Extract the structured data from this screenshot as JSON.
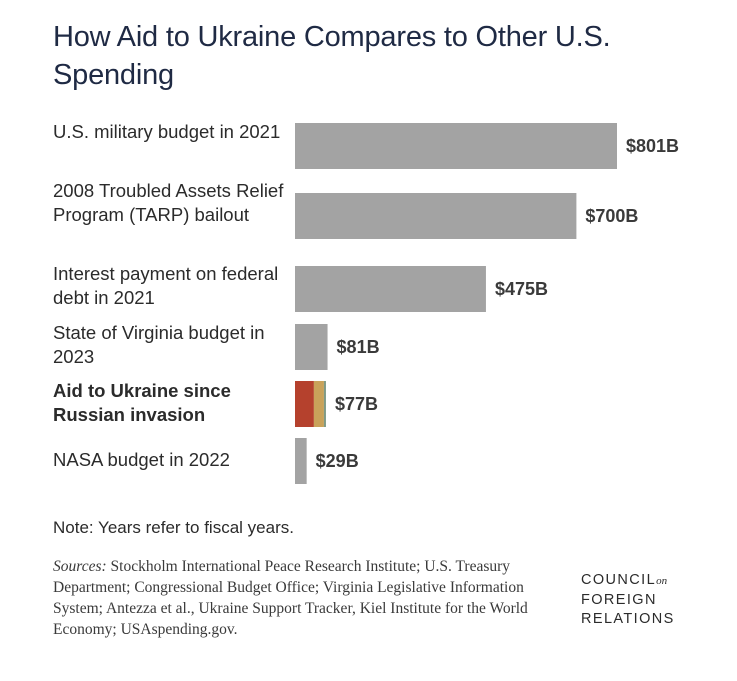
{
  "title": "How Aid to Ukraine Compares to Other U.S. Spending",
  "note": "Note: Years refer to fiscal years.",
  "sources_prefix": "Sources:",
  "sources_text": " Stockholm International Peace Research Institute; U.S. Treasury Department; Congressional Budget Office; Virginia Legislative Information System; Antezza et al., Ukraine Support Tracker, Kiel Institute for the World Economy; USAspending.gov.",
  "logo": {
    "line1": "COUNCIL",
    "on": "on",
    "line2": "FOREIGN",
    "line3": "RELATIONS"
  },
  "colors": {
    "bar": "#a3a3a3",
    "ukraine_1": "#b5412d",
    "ukraine_2": "#c9a25a",
    "ukraine_3": "#7f9a86"
  },
  "chart_data": {
    "type": "bar",
    "orientation": "horizontal",
    "categories": [
      "U.S. military budget in 2021",
      "2008 Troubled Assets Relief Program (TARP) bailout",
      "Interest payment on federal debt in 2021",
      "State of Virginia budget in 2023",
      "Aid to Ukraine since Russian invasion",
      "NASA budget in 2022"
    ],
    "values": [
      801,
      700,
      475,
      81,
      77,
      29
    ],
    "value_labels": [
      "$801B",
      "$700B",
      "$475B",
      "$81B",
      "$77B",
      "$29B"
    ],
    "highlight_index": 4,
    "ukraine_breakdown": [
      {
        "color": "#b5412d",
        "value": 47
      },
      {
        "color": "#c9a25a",
        "value": 25
      },
      {
        "color": "#7f9a86",
        "value": 5
      }
    ],
    "xlim": [
      0,
      801
    ],
    "grid": false,
    "legend": "none"
  }
}
